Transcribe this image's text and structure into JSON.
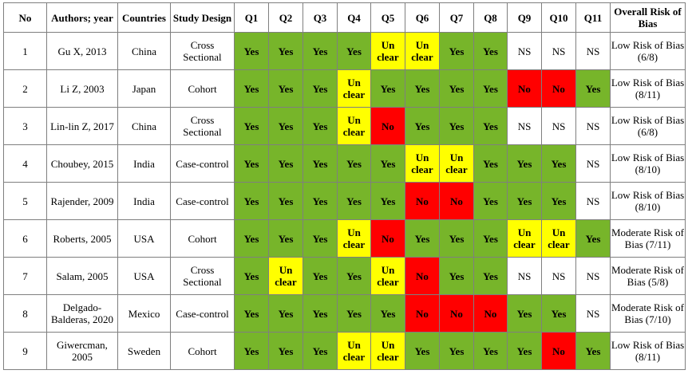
{
  "headers": {
    "no": "No",
    "author": "Authors; year",
    "country": "Countries",
    "design": "Study Design",
    "q": [
      "Q1",
      "Q2",
      "Q3",
      "Q4",
      "Q5",
      "Q6",
      "Q7",
      "Q8",
      "Q9",
      "Q10",
      "Q11"
    ],
    "risk": "Overall Risk of Bias"
  },
  "colors": {
    "yes": "#77b52a",
    "unclear": "#ffff00",
    "no": "#ff0000",
    "ns": "#ffffff"
  },
  "rows": [
    {
      "no": "1",
      "author": "Gu X, 2013",
      "country": "China",
      "design": "Cross Sectional",
      "answers": [
        "Yes",
        "Yes",
        "Yes",
        "Yes",
        "Un clear",
        "Un clear",
        "Yes",
        "Yes",
        "NS",
        "NS",
        "NS"
      ],
      "risk": "Low Risk of Bias (6/8)"
    },
    {
      "no": "2",
      "author": "Li Z, 2003",
      "country": "Japan",
      "design": "Cohort",
      "answers": [
        "Yes",
        "Yes",
        "Yes",
        "Un clear",
        "Yes",
        "Yes",
        "Yes",
        "Yes",
        "No",
        "No",
        "Yes"
      ],
      "risk": "Low Risk of Bias (8/11)"
    },
    {
      "no": "3",
      "author": "Lin-lin Z, 2017",
      "country": "China",
      "design": "Cross Sectional",
      "answers": [
        "Yes",
        "Yes",
        "Yes",
        "Un clear",
        "No",
        "Yes",
        "Yes",
        "Yes",
        "NS",
        "NS",
        "NS"
      ],
      "risk": "Low Risk of Bias (6/8)"
    },
    {
      "no": "4",
      "author": "Choubey, 2015",
      "country": "India",
      "design": "Case-control",
      "answers": [
        "Yes",
        "Yes",
        "Yes",
        "Yes",
        "Yes",
        "Un clear",
        "Un clear",
        "Yes",
        "Yes",
        "Yes",
        "NS"
      ],
      "risk": "Low Risk of Bias (8/10)"
    },
    {
      "no": "5",
      "author": "Rajender, 2009",
      "country": "India",
      "design": "Case-control",
      "answers": [
        "Yes",
        "Yes",
        "Yes",
        "Yes",
        "Yes",
        "No",
        "No",
        "Yes",
        "Yes",
        "Yes",
        "NS"
      ],
      "risk": "Low Risk of Bias (8/10)"
    },
    {
      "no": "6",
      "author": "Roberts, 2005",
      "country": "USA",
      "design": "Cohort",
      "answers": [
        "Yes",
        "Yes",
        "Yes",
        "Un clear",
        "No",
        "Yes",
        "Yes",
        "Yes",
        "Un clear",
        "Un clear",
        "Yes"
      ],
      "risk": "Moderate Risk of Bias (7/11)"
    },
    {
      "no": "7",
      "author": "Salam, 2005",
      "country": "USA",
      "design": "Cross Sectional",
      "answers": [
        "Yes",
        "Un clear",
        "Yes",
        "Yes",
        "Un clear",
        "No",
        "Yes",
        "Yes",
        "NS",
        "NS",
        "NS"
      ],
      "risk": "Moderate Risk of Bias (5/8)"
    },
    {
      "no": "8",
      "author": "Delgado-Balderas, 2020",
      "country": "Mexico",
      "design": "Case-control",
      "answers": [
        "Yes",
        "Yes",
        "Yes",
        "Yes",
        "Yes",
        "No",
        "No",
        "No",
        "Yes",
        "Yes",
        "NS"
      ],
      "risk": "Moderate Risk of Bias (7/10)"
    },
    {
      "no": "9",
      "author": "Giwercman, 2005",
      "country": "Sweden",
      "design": "Cohort",
      "answers": [
        "Yes",
        "Yes",
        "Yes",
        "Un clear",
        "Un clear",
        "Yes",
        "Yes",
        "Yes",
        "Yes",
        "No",
        "Yes"
      ],
      "risk": "Low Risk of Bias (8/11)"
    }
  ]
}
